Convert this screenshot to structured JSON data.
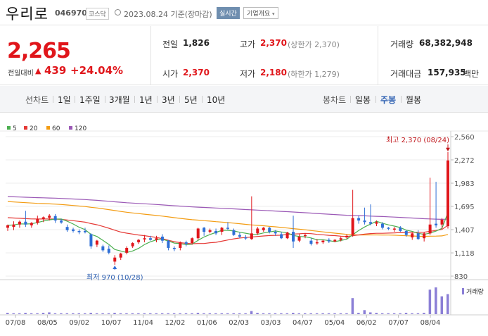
{
  "header": {
    "stock_name": "우리로",
    "stock_code": "046970",
    "market": "코스닥",
    "date": "2023.08.24 기준(장마감)",
    "realtime_label": "실시간",
    "company_info_label": "기업개요"
  },
  "quote": {
    "price": "2,265",
    "change_label": "전일대비",
    "change_icon": "up-triangle-icon",
    "change_value": "439",
    "change_pct": "+24.04%",
    "prev_close_label": "전일",
    "prev_close": "1,826",
    "high_label": "고가",
    "high": "2,370",
    "high_note": "(상한가 2,370)",
    "volume_label": "거래량",
    "volume": "68,382,948",
    "open_label": "시가",
    "open": "2,370",
    "low_label": "저가",
    "low": "2,180",
    "low_note": "(하한가 1,279)",
    "amount_label": "거래대금",
    "amount": "157,935",
    "amount_unit": "백만"
  },
  "period_bar": {
    "line_chart_label": "선차트",
    "line_periods": [
      "1일",
      "1주일",
      "3개월",
      "1년",
      "3년",
      "5년",
      "10년"
    ],
    "candle_chart_label": "봉차트",
    "candle_periods": [
      "일봉",
      "주봉",
      "월봉"
    ],
    "active_candle": "주봉"
  },
  "colors": {
    "up": "#e0161b",
    "down": "#2f6fd6",
    "ma5": "#4caf50",
    "ma20": "#e53935",
    "ma60": "#f39c12",
    "ma120": "#9b59b6",
    "volume": "#8b7fd6"
  },
  "chart_data": {
    "type": "candlestick",
    "legend": [
      "5",
      "20",
      "60",
      "120"
    ],
    "y_ticks": [
      830,
      1118,
      1407,
      1695,
      1983,
      2272,
      2560
    ],
    "y_tick_labels": [
      "830",
      "1,118",
      "1,407",
      "1,695",
      "1,983",
      "2,272",
      "2,560"
    ],
    "ylim": [
      830,
      2560
    ],
    "x_tick_labels": [
      "07/08",
      "08/05",
      "09/02",
      "10/07",
      "11/04",
      "12/02",
      "01/06",
      "02/03",
      "03/03",
      "04/07",
      "05/04",
      "06/02",
      "07/07",
      "08/04"
    ],
    "volume_label": "거래량",
    "annotations": {
      "high_text": "최고 2,370 (08/24)",
      "low_text": "최저 970 (10/28)"
    },
    "candles": [
      {
        "o": 1430,
        "h": 1470,
        "l": 1390,
        "c": 1460
      },
      {
        "o": 1440,
        "h": 1510,
        "l": 1400,
        "c": 1470
      },
      {
        "o": 1470,
        "h": 1520,
        "l": 1430,
        "c": 1505
      },
      {
        "o": 1505,
        "h": 1640,
        "l": 1440,
        "c": 1470
      },
      {
        "o": 1460,
        "h": 1500,
        "l": 1430,
        "c": 1490
      },
      {
        "o": 1490,
        "h": 1580,
        "l": 1470,
        "c": 1540
      },
      {
        "o": 1540,
        "h": 1570,
        "l": 1500,
        "c": 1560
      },
      {
        "o": 1555,
        "h": 1600,
        "l": 1520,
        "c": 1580
      },
      {
        "o": 1575,
        "h": 1600,
        "l": 1490,
        "c": 1520
      },
      {
        "o": 1520,
        "h": 1540,
        "l": 1480,
        "c": 1495
      },
      {
        "o": 1440,
        "h": 1470,
        "l": 1380,
        "c": 1400
      },
      {
        "o": 1410,
        "h": 1430,
        "l": 1370,
        "c": 1390
      },
      {
        "o": 1390,
        "h": 1410,
        "l": 1350,
        "c": 1375
      },
      {
        "o": 1390,
        "h": 1430,
        "l": 1360,
        "c": 1375
      },
      {
        "o": 1350,
        "h": 1360,
        "l": 1170,
        "c": 1200
      },
      {
        "o": 1220,
        "h": 1280,
        "l": 1190,
        "c": 1270
      },
      {
        "o": 1200,
        "h": 1220,
        "l": 1130,
        "c": 1150
      },
      {
        "o": 1170,
        "h": 1210,
        "l": 1100,
        "c": 1120
      },
      {
        "o": 1010,
        "h": 1090,
        "l": 970,
        "c": 1060
      },
      {
        "o": 1060,
        "h": 1120,
        "l": 1030,
        "c": 1110
      },
      {
        "o": 1120,
        "h": 1200,
        "l": 1100,
        "c": 1180
      },
      {
        "o": 1200,
        "h": 1250,
        "l": 1180,
        "c": 1240
      },
      {
        "o": 1250,
        "h": 1290,
        "l": 1230,
        "c": 1280
      },
      {
        "o": 1285,
        "h": 1340,
        "l": 1250,
        "c": 1300
      },
      {
        "o": 1300,
        "h": 1330,
        "l": 1270,
        "c": 1280
      },
      {
        "o": 1280,
        "h": 1330,
        "l": 1250,
        "c": 1300
      },
      {
        "o": 1320,
        "h": 1350,
        "l": 1240,
        "c": 1270
      },
      {
        "o": 1270,
        "h": 1280,
        "l": 1150,
        "c": 1180
      },
      {
        "o": 1180,
        "h": 1200,
        "l": 1140,
        "c": 1170
      },
      {
        "o": 1180,
        "h": 1260,
        "l": 1150,
        "c": 1250
      },
      {
        "o": 1250,
        "h": 1270,
        "l": 1200,
        "c": 1230
      },
      {
        "o": 1240,
        "h": 1310,
        "l": 1220,
        "c": 1300
      },
      {
        "o": 1300,
        "h": 1430,
        "l": 1280,
        "c": 1420
      },
      {
        "o": 1430,
        "h": 1440,
        "l": 1330,
        "c": 1380
      },
      {
        "o": 1380,
        "h": 1420,
        "l": 1360,
        "c": 1400
      },
      {
        "o": 1390,
        "h": 1420,
        "l": 1340,
        "c": 1360
      },
      {
        "o": 1380,
        "h": 1440,
        "l": 1340,
        "c": 1430
      },
      {
        "o": 1430,
        "h": 1500,
        "l": 1400,
        "c": 1420
      },
      {
        "o": 1400,
        "h": 1420,
        "l": 1330,
        "c": 1340
      },
      {
        "o": 1340,
        "h": 1370,
        "l": 1300,
        "c": 1320
      },
      {
        "o": 1310,
        "h": 1340,
        "l": 1280,
        "c": 1300
      },
      {
        "o": 1290,
        "h": 1820,
        "l": 1280,
        "c": 1360
      },
      {
        "o": 1360,
        "h": 1440,
        "l": 1340,
        "c": 1420
      },
      {
        "o": 1400,
        "h": 1440,
        "l": 1380,
        "c": 1430
      },
      {
        "o": 1430,
        "h": 1440,
        "l": 1360,
        "c": 1380
      },
      {
        "o": 1380,
        "h": 1400,
        "l": 1330,
        "c": 1360
      },
      {
        "o": 1350,
        "h": 1380,
        "l": 1290,
        "c": 1300
      },
      {
        "o": 1300,
        "h": 1380,
        "l": 1290,
        "c": 1370
      },
      {
        "o": 1380,
        "h": 1580,
        "l": 1180,
        "c": 1260
      },
      {
        "o": 1270,
        "h": 1350,
        "l": 1250,
        "c": 1320
      },
      {
        "o": 1330,
        "h": 1360,
        "l": 1300,
        "c": 1340
      },
      {
        "o": 1270,
        "h": 1300,
        "l": 1210,
        "c": 1230
      },
      {
        "o": 1240,
        "h": 1290,
        "l": 1220,
        "c": 1250
      },
      {
        "o": 1250,
        "h": 1280,
        "l": 1230,
        "c": 1270
      },
      {
        "o": 1280,
        "h": 1300,
        "l": 1240,
        "c": 1260
      },
      {
        "o": 1260,
        "h": 1290,
        "l": 1250,
        "c": 1280
      },
      {
        "o": 1280,
        "h": 1320,
        "l": 1260,
        "c": 1300
      },
      {
        "o": 1310,
        "h": 1350,
        "l": 1290,
        "c": 1330
      },
      {
        "o": 1340,
        "h": 1900,
        "l": 1320,
        "c": 1550
      },
      {
        "o": 1550,
        "h": 1580,
        "l": 1480,
        "c": 1520
      },
      {
        "o": 1520,
        "h": 1680,
        "l": 1470,
        "c": 1500
      },
      {
        "o": 1500,
        "h": 1720,
        "l": 1460,
        "c": 1480
      },
      {
        "o": 1480,
        "h": 1520,
        "l": 1450,
        "c": 1500
      },
      {
        "o": 1480,
        "h": 1500,
        "l": 1410,
        "c": 1430
      },
      {
        "o": 1430,
        "h": 1440,
        "l": 1400,
        "c": 1420
      },
      {
        "o": 1420,
        "h": 1440,
        "l": 1380,
        "c": 1420
      },
      {
        "o": 1430,
        "h": 1450,
        "l": 1380,
        "c": 1390
      },
      {
        "o": 1390,
        "h": 1400,
        "l": 1320,
        "c": 1340
      },
      {
        "o": 1310,
        "h": 1370,
        "l": 1280,
        "c": 1360
      },
      {
        "o": 1360,
        "h": 1400,
        "l": 1280,
        "c": 1290
      },
      {
        "o": 1300,
        "h": 1380,
        "l": 1260,
        "c": 1360
      },
      {
        "o": 1360,
        "h": 2050,
        "l": 1340,
        "c": 1470
      },
      {
        "o": 1480,
        "h": 2000,
        "l": 1430,
        "c": 1460
      },
      {
        "o": 1470,
        "h": 1550,
        "l": 1420,
        "c": 1530
      },
      {
        "o": 1450,
        "h": 2370,
        "l": 1420,
        "c": 2265
      }
    ],
    "volumes": [
      3,
      2,
      2,
      3,
      2,
      2,
      3,
      4,
      2,
      2,
      2,
      2,
      2,
      2,
      3,
      2,
      2,
      2,
      3,
      2,
      2,
      2,
      2,
      2,
      2,
      2,
      2,
      2,
      2,
      2,
      2,
      2,
      3,
      2,
      2,
      2,
      2,
      2,
      2,
      2,
      2,
      7,
      3,
      2,
      2,
      2,
      2,
      2,
      3,
      2,
      2,
      2,
      2,
      2,
      2,
      2,
      2,
      2,
      36,
      3,
      9,
      4,
      3,
      2,
      2,
      2,
      2,
      3,
      2,
      2,
      3,
      55,
      60,
      40,
      45
    ]
  }
}
